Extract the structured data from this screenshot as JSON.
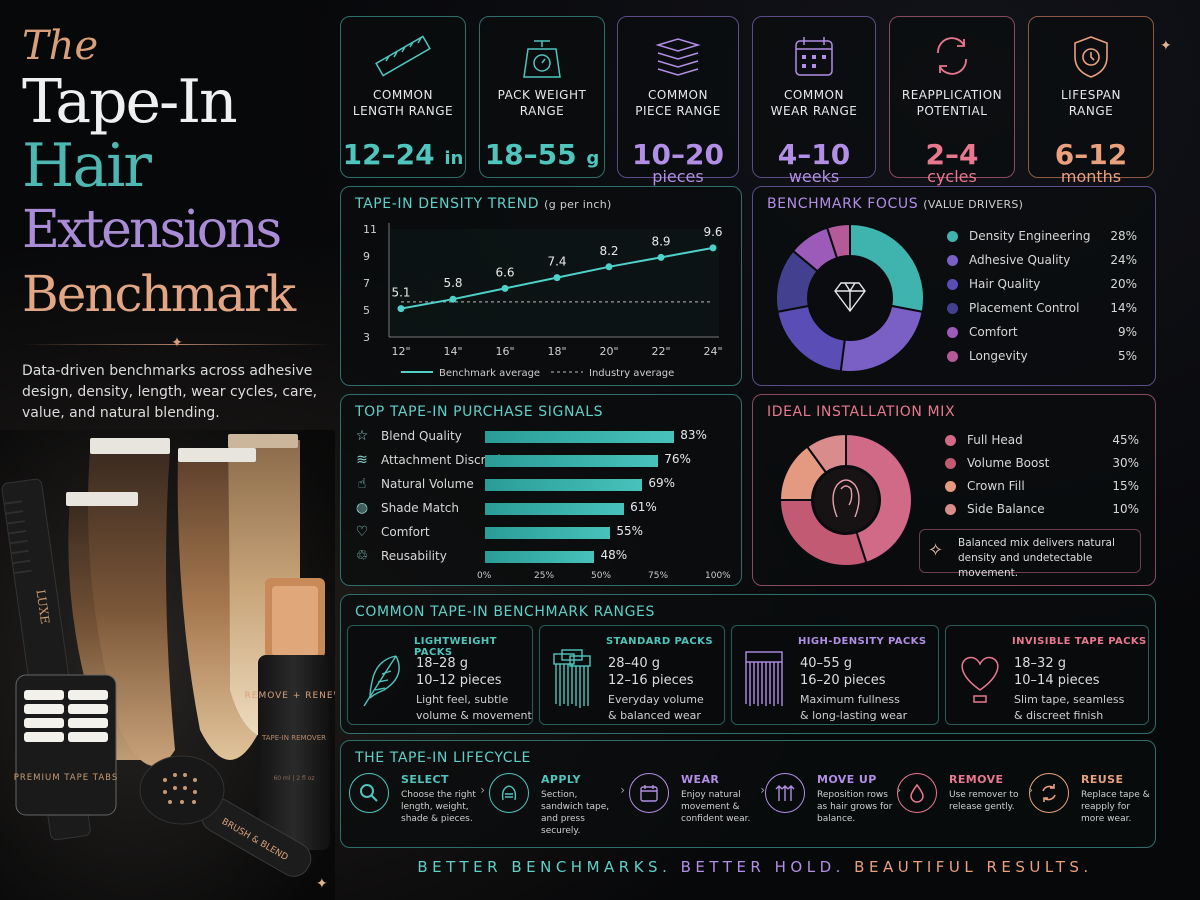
{
  "hero": {
    "the": "The",
    "line1": "Tape-In",
    "line2": "Hair",
    "line3": "Extensions",
    "line4": "Benchmark",
    "description": "Data-driven benchmarks across adhesive design, density, length, wear cycles, care, value, and natural blending."
  },
  "products": {
    "comb_text": "LUXE",
    "tabs_text": "PREMIUM TAPE TABS",
    "bottle_text": "REMOVE + RENEW",
    "bottle_sub": "TAPE-IN REMOVER",
    "bottle_volume": "60 ml | 2 fl oz",
    "brush_text": "BRUSH & BLEND"
  },
  "stats": [
    {
      "label1": "COMMON",
      "label2": "LENGTH RANGE",
      "value": "12–24",
      "unit": "in",
      "sub": "",
      "icon": "ruler-icon",
      "color": "#4fc5bd"
    },
    {
      "label1": "PACK WEIGHT",
      "label2": "RANGE",
      "value": "18–55",
      "unit": "g",
      "sub": "",
      "icon": "scale-icon",
      "color": "#4fc5bd"
    },
    {
      "label1": "COMMON",
      "label2": "PIECE RANGE",
      "value": "10–20",
      "unit": "",
      "sub": "pieces",
      "icon": "stack-icon",
      "color": "#b28ee6"
    },
    {
      "label1": "COMMON",
      "label2": "WEAR RANGE",
      "value": "4–10",
      "unit": "",
      "sub": "weeks",
      "icon": "calendar-icon",
      "color": "#b28ee6"
    },
    {
      "label1": "REAPPLICATION",
      "label2": "POTENTIAL",
      "value": "2–4",
      "unit": "",
      "sub": "cycles",
      "icon": "cycle-icon",
      "color": "#e8788f"
    },
    {
      "label1": "LIFESPAN",
      "label2": "RANGE",
      "value": "6–12",
      "unit": "",
      "sub": "months",
      "icon": "shield-clock-icon",
      "color": "#eaa07c"
    }
  ],
  "density": {
    "title": "TAPE-IN DENSITY TREND",
    "unit": "(g per inch)",
    "legend_bench": "Benchmark average",
    "legend_industry": "Industry average"
  },
  "chart_data": {
    "type": "line",
    "x": [
      "12\"",
      "14\"",
      "16\"",
      "18\"",
      "20\"",
      "22\"",
      "24\""
    ],
    "series": [
      {
        "name": "Benchmark average",
        "values": [
          5.1,
          5.8,
          6.6,
          7.4,
          8.2,
          8.9,
          9.6
        ]
      },
      {
        "name": "Industry average",
        "values": [
          5.6,
          5.6,
          5.6,
          5.6,
          5.6,
          5.6,
          5.6
        ]
      }
    ],
    "title": "TAPE-IN DENSITY TREND",
    "ylabel": "(g per inch)",
    "ylim": [
      3,
      11
    ],
    "yticks": [
      "3",
      "5",
      "7",
      "9",
      "11"
    ],
    "legend": "bottom"
  },
  "focus": {
    "title": "BENCHMARK FOCUS",
    "subtitle": "(VALUE DRIVERS)",
    "items": [
      {
        "name": "Density Engineering",
        "pct": "28%",
        "value": 28,
        "color": "#3fb3ad"
      },
      {
        "name": "Adhesive Quality",
        "pct": "24%",
        "value": 24,
        "color": "#7a5fc4"
      },
      {
        "name": "Hair Quality",
        "pct": "20%",
        "value": 20,
        "color": "#5a4db5"
      },
      {
        "name": "Placement Control",
        "pct": "14%",
        "value": 14,
        "color": "#43418f"
      },
      {
        "name": "Comfort",
        "pct": "9%",
        "value": 9,
        "color": "#9c5bb8"
      },
      {
        "name": "Longevity",
        "pct": "5%",
        "value": 5,
        "color": "#b55a98"
      }
    ]
  },
  "signals": {
    "title": "TOP TAPE-IN PURCHASE SIGNALS",
    "items": [
      {
        "name": "Blend Quality",
        "pct": "83%",
        "value": 83,
        "icon": "☆"
      },
      {
        "name": "Attachment Discretion",
        "pct": "76%",
        "value": 76,
        "icon": "≋"
      },
      {
        "name": "Natural Volume",
        "pct": "69%",
        "value": 69,
        "icon": "☝"
      },
      {
        "name": "Shade Match",
        "pct": "61%",
        "value": 61,
        "icon": "◍"
      },
      {
        "name": "Comfort",
        "pct": "55%",
        "value": 55,
        "icon": "♡"
      },
      {
        "name": "Reusability",
        "pct": "48%",
        "value": 48,
        "icon": "♲"
      }
    ],
    "axis": [
      "0%",
      "25%",
      "50%",
      "75%",
      "100%"
    ]
  },
  "install": {
    "title": "IDEAL INSTALLATION MIX",
    "items": [
      {
        "name": "Full Head",
        "pct": "45%",
        "value": 45,
        "color": "#d16a86"
      },
      {
        "name": "Volume Boost",
        "pct": "30%",
        "value": 30,
        "color": "#c25a74"
      },
      {
        "name": "Crown Fill",
        "pct": "15%",
        "value": 15,
        "color": "#e39a80"
      },
      {
        "name": "Side Balance",
        "pct": "10%",
        "value": 10,
        "color": "#d98c8c"
      }
    ],
    "note": "Balanced mix delivers natural density and undetectable movement."
  },
  "ranges": {
    "title": "COMMON TAPE-IN BENCHMARK RANGES",
    "cards": [
      {
        "title": "LIGHTWEIGHT PACKS",
        "weight": "18–28 g",
        "pieces": "10–12 pieces",
        "desc1": "Light feel, subtle",
        "desc2": "volume & movement",
        "color": "#4fc5bd"
      },
      {
        "title": "STANDARD PACKS",
        "weight": "28–40 g",
        "pieces": "12–16 pieces",
        "desc1": "Everyday volume",
        "desc2": "& balanced wear",
        "color": "#4fc5bd"
      },
      {
        "title": "HIGH-DENSITY PACKS",
        "weight": "40–55 g",
        "pieces": "16–20 pieces",
        "desc1": "Maximum fullness",
        "desc2": "& long-lasting wear",
        "color": "#b28ee6"
      },
      {
        "title": "INVISIBLE TAPE PACKS",
        "weight": "18–32 g",
        "pieces": "10–14 pieces",
        "desc1": "Slim tape, seamless",
        "desc2": "& discreet finish",
        "color": "#e8788f"
      }
    ]
  },
  "lifecycle": {
    "title": "THE TAPE-IN LIFECYCLE",
    "steps": [
      {
        "title": "SELECT",
        "desc": "Choose the right length, weight, shade & pieces.",
        "color": "#4fc5bd"
      },
      {
        "title": "APPLY",
        "desc": "Section, sandwich tape, and press securely.",
        "color": "#4fc5bd"
      },
      {
        "title": "WEAR",
        "desc": "Enjoy natural movement & confident wear.",
        "color": "#b28ee6"
      },
      {
        "title": "MOVE UP",
        "desc": "Reposition rows as hair grows for balance.",
        "color": "#b28ee6"
      },
      {
        "title": "REMOVE",
        "desc": "Use remover to release gently.",
        "color": "#e8788f"
      },
      {
        "title": "REUSE",
        "desc": "Replace tape & reapply for more wear.",
        "color": "#eaa07c"
      }
    ]
  },
  "tagline": {
    "part1": "BETTER BENCHMARKS.",
    "part2": "BETTER HOLD.",
    "part3": "BEAUTIFUL RESULTS."
  }
}
